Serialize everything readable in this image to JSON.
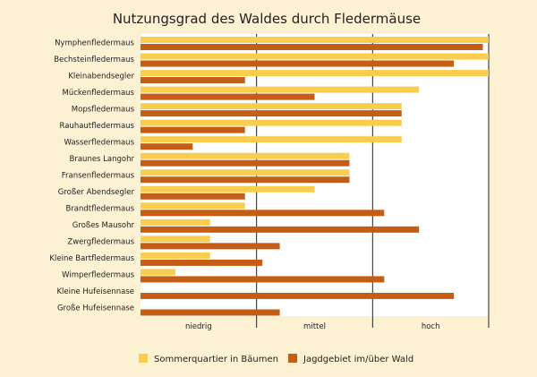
{
  "chart_data": {
    "type": "bar",
    "orientation": "horizontal",
    "title": "Nutzungsgrad des Waldes durch Fledermäuse",
    "categories": [
      "Nymphenfledermaus",
      "Bechsteinfledermaus",
      "Kleinabendsegler",
      "Mückenfledermaus",
      "Mopsfledermaus",
      "Rauhautfledermaus",
      "Wasserfledermaus",
      "Braunes Langohr",
      "Fransenfledermaus",
      "Großer Abendsegler",
      "Brandtfledermaus",
      "Großes Mausohr",
      "Zwergfledermaus",
      "Kleine Bartfledermaus",
      "Wimperfledermaus",
      "Kleine Hufeisennase",
      "Große Hufeisennase"
    ],
    "x_tick_labels": [
      "niedrig",
      "mittel",
      "hoch"
    ],
    "xlim": [
      0,
      3
    ],
    "series": [
      {
        "name": "Sommerquartier in Bäumen",
        "color": "#f9ce4e",
        "values": [
          3.0,
          3.0,
          3.0,
          2.4,
          2.25,
          2.25,
          2.25,
          1.8,
          1.8,
          1.5,
          0.9,
          0.6,
          0.6,
          0.6,
          0.3,
          null,
          null
        ]
      },
      {
        "name": "Jagdgebiet im/über Wald",
        "color": "#c45e17",
        "values": [
          2.95,
          2.7,
          0.9,
          1.5,
          2.25,
          0.9,
          0.45,
          1.8,
          1.8,
          0.9,
          2.1,
          2.4,
          1.2,
          1.05,
          2.1,
          2.7,
          1.2
        ]
      }
    ],
    "grid": "vertical lines at category boundaries",
    "legend_position": "bottom"
  }
}
